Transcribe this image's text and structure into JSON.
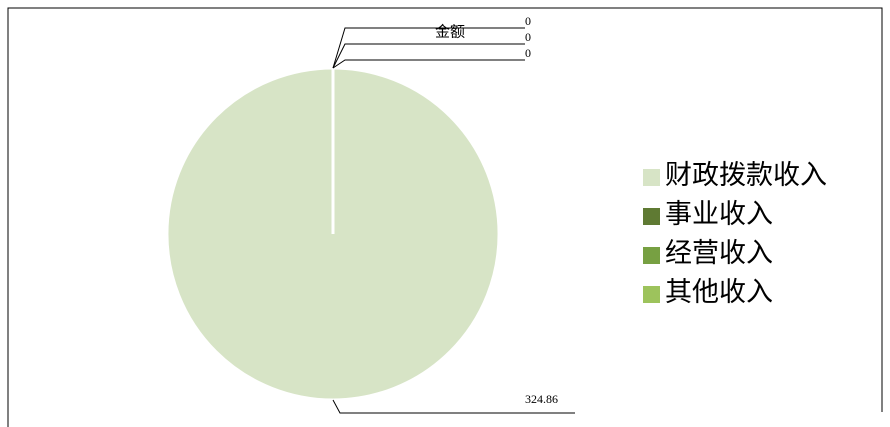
{
  "chart_data": {
    "type": "pie",
    "title": "金额",
    "categories": [
      "财政拨款收入",
      "事业收入",
      "经营收入",
      "其他收入"
    ],
    "values": [
      324.86,
      0,
      0,
      0
    ],
    "colors": [
      "#d7e4c6",
      "#5f7a33",
      "#77a042",
      "#9dc35c"
    ],
    "legend": "right"
  }
}
